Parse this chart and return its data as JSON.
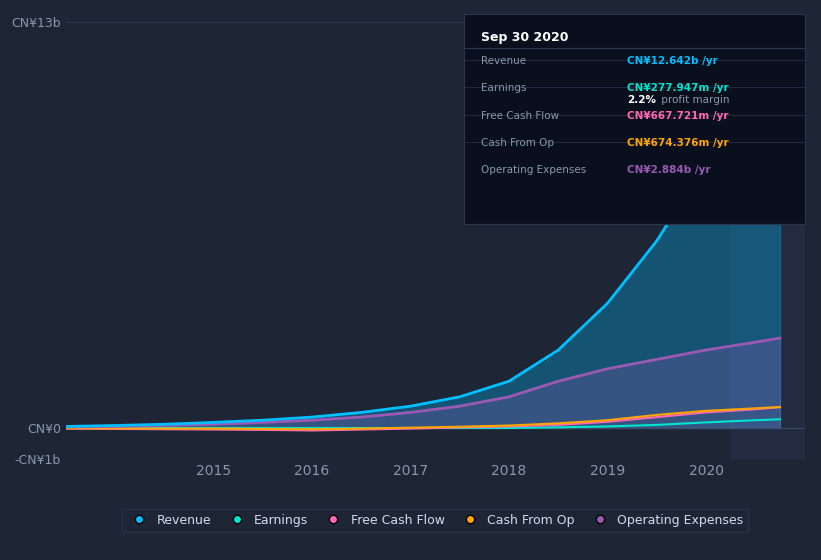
{
  "bg_color": "#1e2535",
  "plot_bg_color": "#1e2535",
  "grid_color": "#2a3550",
  "title": "Sep 30 2020",
  "years": [
    2013.5,
    2014.0,
    2014.5,
    2015.0,
    2015.5,
    2016.0,
    2016.5,
    2017.0,
    2017.5,
    2018.0,
    2018.5,
    2019.0,
    2019.5,
    2020.0,
    2020.5,
    2020.75
  ],
  "revenue": [
    0.05,
    0.08,
    0.12,
    0.18,
    0.25,
    0.35,
    0.5,
    0.7,
    1.0,
    1.5,
    2.5,
    4.0,
    6.0,
    8.5,
    11.5,
    12.642
  ],
  "earnings": [
    0.0,
    0.0,
    0.0,
    0.0,
    0.0,
    0.0,
    0.0,
    0.0,
    0.0,
    0.0,
    0.02,
    0.05,
    0.1,
    0.18,
    0.25,
    0.278
  ],
  "free_cash_flow": [
    -0.02,
    -0.03,
    -0.04,
    -0.05,
    -0.06,
    -0.08,
    -0.05,
    -0.02,
    0.02,
    0.05,
    0.1,
    0.2,
    0.35,
    0.5,
    0.6,
    0.668
  ],
  "cash_from_op": [
    -0.01,
    -0.01,
    -0.02,
    -0.02,
    -0.03,
    -0.04,
    -0.02,
    0.01,
    0.04,
    0.08,
    0.15,
    0.25,
    0.42,
    0.55,
    0.63,
    0.674
  ],
  "operating_expenses": [
    0.03,
    0.05,
    0.08,
    0.12,
    0.18,
    0.25,
    0.35,
    0.5,
    0.7,
    1.0,
    1.5,
    1.9,
    2.2,
    2.5,
    2.75,
    2.884
  ],
  "revenue_color": "#00bfff",
  "earnings_color": "#00e5cc",
  "free_cash_flow_color": "#ff69b4",
  "cash_from_op_color": "#ffa500",
  "operating_expenses_color": "#9b59b6",
  "ylim": [
    -1.0,
    13.0
  ],
  "xlim": [
    2013.5,
    2021.0
  ],
  "yticks": [
    -1.0,
    0.0,
    13.0
  ],
  "ytick_labels": [
    "-CN¥1b",
    "CN¥0",
    "CN¥13b"
  ],
  "xticks": [
    2015,
    2016,
    2017,
    2018,
    2019,
    2020
  ],
  "legend_labels": [
    "Revenue",
    "Earnings",
    "Free Cash Flow",
    "Cash From Op",
    "Operating Expenses"
  ],
  "legend_colors": [
    "#00bfff",
    "#00e5cc",
    "#ff69b4",
    "#ffa500",
    "#9b59b6"
  ],
  "tooltip_span_start": 2020.25,
  "tooltip_span_end": 2021.0,
  "info_rows": [
    {
      "label": "Revenue",
      "value": "CN¥12.642b /yr",
      "color": "#00bfff",
      "extra_bold": null,
      "extra_normal": null
    },
    {
      "label": "Earnings",
      "value": "CN¥277.947m /yr",
      "color": "#00e5cc",
      "extra_bold": "2.2%",
      "extra_normal": " profit margin"
    },
    {
      "label": "Free Cash Flow",
      "value": "CN¥667.721m /yr",
      "color": "#ff69b4",
      "extra_bold": null,
      "extra_normal": null
    },
    {
      "label": "Cash From Op",
      "value": "CN¥674.376m /yr",
      "color": "#ffa500",
      "extra_bold": null,
      "extra_normal": null
    },
    {
      "label": "Operating Expenses",
      "value": "CN¥2.884b /yr",
      "color": "#9b59b6",
      "extra_bold": null,
      "extra_normal": null
    }
  ]
}
